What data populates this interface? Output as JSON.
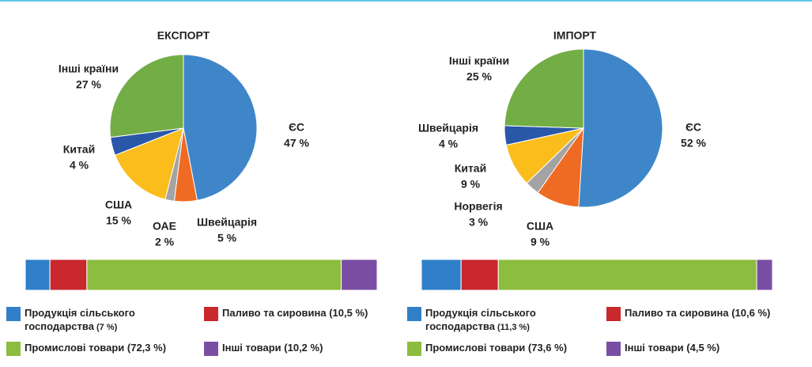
{
  "chart_data": [
    {
      "type": "pie",
      "title": "ЕКСПОРТ",
      "categories": [
        "ЄС",
        "Швейцарія",
        "ОАЕ",
        "США",
        "Китай",
        "Інші країни"
      ],
      "values": [
        47,
        5,
        2,
        15,
        4,
        27
      ],
      "value_labels": [
        "47 %",
        "5 %",
        "2 %",
        "15 %",
        "4 %",
        "27 %"
      ],
      "colors": [
        "#3f86c9",
        "#ef6a22",
        "#a3a3a3",
        "#fbbd1b",
        "#2a57a8",
        "#72ad45"
      ]
    },
    {
      "type": "pie",
      "title": "ІМПОРТ",
      "categories": [
        "ЄС",
        "США",
        "Норвегія",
        "Китай",
        "Швейцарія",
        "Інші країни"
      ],
      "values": [
        52,
        9,
        3,
        9,
        4,
        25
      ],
      "value_labels": [
        "52 %",
        "9 %",
        "3 %",
        "9 %",
        "4 %",
        "25 %"
      ],
      "colors": [
        "#3f86c9",
        "#ef6a22",
        "#a3a3a3",
        "#fbbd1b",
        "#2a57a8",
        "#72ad45"
      ]
    },
    {
      "type": "bar",
      "stacked": true,
      "series": [
        {
          "name": "Продукція сільського господарства",
          "color": "#2f7fc9",
          "values": [
            7
          ],
          "value_labels": [
            "(7 %)"
          ]
        },
        {
          "name": "Паливо та сировина",
          "color": "#c9282d",
          "values": [
            10.5
          ],
          "value_labels": [
            "(10,5 %)"
          ]
        },
        {
          "name": "Промислові товари",
          "color": "#8cbd3f",
          "values": [
            72.3
          ],
          "value_labels": [
            "(72,3 %)"
          ]
        },
        {
          "name": "Інші товари",
          "color": "#7a4fa3",
          "values": [
            10.2
          ],
          "value_labels": [
            "(10,2 %)"
          ]
        }
      ]
    },
    {
      "type": "bar",
      "stacked": true,
      "series": [
        {
          "name": "Продукція сільського господарства",
          "color": "#2f7fc9",
          "values": [
            11.3
          ],
          "value_labels": [
            "(11,3 %)"
          ]
        },
        {
          "name": "Паливо та сировина",
          "color": "#c9282d",
          "values": [
            10.6
          ],
          "value_labels": [
            "(10,6 %)"
          ]
        },
        {
          "name": "Промислові товари",
          "color": "#8cbd3f",
          "values": [
            73.6
          ],
          "value_labels": [
            "(73,6 %)"
          ]
        },
        {
          "name": "Інші товари",
          "color": "#7a4fa3",
          "values": [
            4.5
          ],
          "value_labels": [
            "(4,5 %)"
          ]
        }
      ]
    }
  ]
}
